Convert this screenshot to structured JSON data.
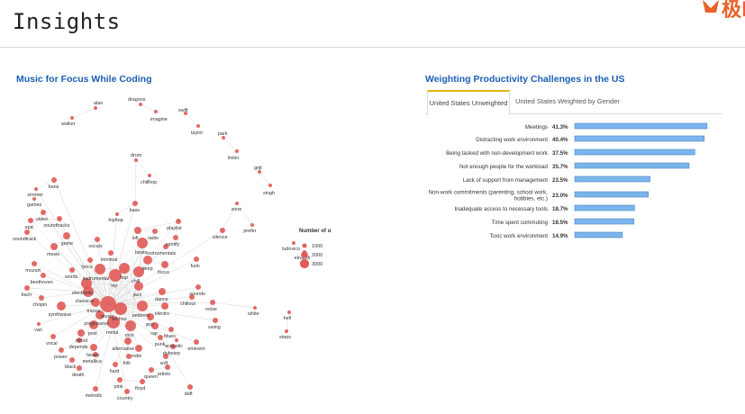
{
  "page": {
    "title": "Insights",
    "logo_text": "极E"
  },
  "network_panel": {
    "title": "Music for Focus While Coding"
  },
  "productivity_panel": {
    "title": "Weighting Productivity Challenges in the US",
    "tabs": [
      {
        "label": "United States Unweighted",
        "active": true
      },
      {
        "label": "United States Weighted by Gender",
        "active": false
      }
    ]
  },
  "colors": {
    "node": "#e05a57",
    "bar": "#7cb4ec",
    "bar_stroke": "#4a88c8",
    "title": "#1a5fb4",
    "tab_accent": "#e8b30b"
  },
  "chart_data": [
    {
      "type": "scatter",
      "subtype": "network",
      "title": "Music for Focus While Coding",
      "legend": {
        "title": "Number of uses",
        "entries": [
          {
            "label": "1000",
            "value": 1000
          },
          {
            "label": "2000",
            "value": 2000
          },
          {
            "label": "3000",
            "value": 3000
          }
        ],
        "placement": "right"
      },
      "nodes": [
        "walker",
        "alan",
        "dragons",
        "imagine",
        "swift",
        "taylor",
        "park",
        "linkin",
        "drum",
        "chillhop",
        "grijt",
        "singh",
        "bans",
        "zimmer",
        "games",
        "video",
        "epic",
        "soundtracks",
        "soundtrack",
        "game",
        "movie",
        "vocals",
        "lofi",
        "radio",
        "playlist",
        "spotify",
        "instrumentals",
        "bass",
        "hiphop",
        "beats",
        "minimal",
        "lyrics",
        "words",
        "instrumental",
        "mozart",
        "beethoven",
        "bach",
        "chopin",
        "synthwave",
        "electronic",
        "classical",
        "trance",
        "progressive",
        "post",
        "van",
        "vocal",
        "mood",
        "depends",
        "power",
        "black",
        "death",
        "metallica",
        "heavy",
        "alternative",
        "indie",
        "folk",
        "hard",
        "pink",
        "floyd",
        "melodic",
        "country",
        "queen",
        "artists",
        "daft",
        "soft",
        "dubstep",
        "punk",
        "blues",
        "acoustic",
        "eminem",
        "rap",
        "pop",
        "chill",
        "deep",
        "focus",
        "funk",
        "ambient",
        "jazz",
        "hop",
        "hip",
        "dance",
        "chillout",
        "sounds",
        "electro",
        "noise",
        "swing",
        "white",
        "steps",
        "hell",
        "prefer",
        "zone",
        "silence",
        "ludovico",
        "einaudi",
        "techno",
        "metal",
        "rock",
        "music"
      ]
    },
    {
      "type": "bar",
      "orientation": "horizontal",
      "title": "Weighting Productivity Challenges in the US",
      "categories": [
        "Meetings",
        "Distracting work environment",
        "Being tasked with non-development work",
        "Not enough people for the workload",
        "Lack of support from management",
        "Non-work commitments (parenting, school work, hobbies, etc.)",
        "Inadequate access to necessary tools",
        "Time spent commuting",
        "Toxic work environment"
      ],
      "values": [
        41.3,
        40.4,
        37.5,
        35.7,
        23.5,
        23.0,
        18.7,
        18.5,
        14.9
      ],
      "value_labels": [
        "41.3%",
        "40.4%",
        "37.5%",
        "35.7%",
        "23.5%",
        "23.0%",
        "18.7%",
        "18.5%",
        "14.9%"
      ],
      "xlim": [
        0,
        45
      ],
      "grid": false
    }
  ]
}
